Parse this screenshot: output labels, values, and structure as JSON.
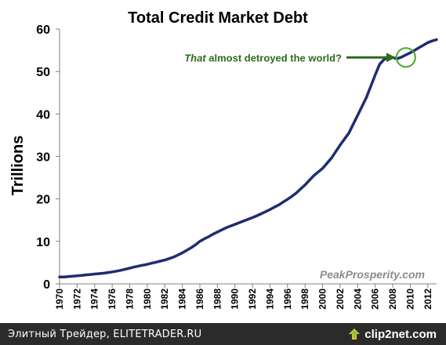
{
  "footer": {
    "text": "Элитный Трейдер, ELITETRADER.RU",
    "brand": "clip2net.com",
    "brand_icon": "upload-arrow-icon"
  },
  "colors": {
    "line": "#1f2d6e",
    "annotation": "#2f6b1f",
    "highlight": "#46a82a",
    "watermark": "#8c8c8c",
    "footer_bg": "#2b2b2b"
  },
  "chart_data": {
    "type": "line",
    "title": "Total Credit Market Debt",
    "ylabel": "Trillions",
    "xlabel": "",
    "xlim": [
      1970,
      2013
    ],
    "ylim": [
      0,
      60
    ],
    "yticks": [
      0,
      10,
      20,
      30,
      40,
      50,
      60
    ],
    "xticks": [
      1970,
      1972,
      1974,
      1976,
      1978,
      1980,
      1982,
      1984,
      1986,
      1988,
      1990,
      1992,
      1994,
      1996,
      1998,
      2000,
      2002,
      2004,
      2006,
      2008,
      2010,
      2012
    ],
    "grid": false,
    "annotation": {
      "emphasis": "That",
      "text": " almost detroyed the world?",
      "x": 2009.5,
      "y": 53.3
    },
    "source": "PeakProsperity.com",
    "series": [
      {
        "x": [
          1970,
          1970.5,
          1971,
          1971.5,
          1972,
          1972.5,
          1973,
          1973.5,
          1974,
          1974.5,
          1975,
          1975.5,
          1976,
          1976.5,
          1977,
          1977.5,
          1978,
          1978.5,
          1979,
          1979.5,
          1980,
          1980.5,
          1981,
          1981.5,
          1982,
          1982.5,
          1983,
          1983.5,
          1984,
          1984.5,
          1985,
          1985.5,
          1986,
          1986.5,
          1987,
          1987.5,
          1988,
          1988.5,
          1989,
          1989.5,
          1990,
          1990.5,
          1991,
          1991.5,
          1992,
          1992.5,
          1993,
          1993.5,
          1994,
          1994.5,
          1995,
          1995.5,
          1996,
          1996.5,
          1997,
          1997.5,
          1998,
          1998.5,
          1999,
          1999.5,
          2000,
          2000.5,
          2001,
          2001.5,
          2002,
          2002.5,
          2003,
          2003.5,
          2004,
          2004.5,
          2005,
          2005.5,
          2006,
          2006.5,
          2007,
          2007.5,
          2008,
          2008.5,
          2009,
          2009.5,
          2010,
          2010.5,
          2011,
          2011.5,
          2012,
          2012.5,
          2013
        ],
        "values": [
          1.6,
          1.6,
          1.7,
          1.8,
          1.9,
          2.0,
          2.1,
          2.2,
          2.3,
          2.4,
          2.5,
          2.65,
          2.8,
          3.0,
          3.2,
          3.45,
          3.7,
          3.95,
          4.2,
          4.4,
          4.6,
          4.85,
          5.1,
          5.35,
          5.6,
          5.95,
          6.3,
          6.8,
          7.3,
          7.9,
          8.5,
          9.2,
          10.0,
          10.6,
          11.1,
          11.7,
          12.2,
          12.7,
          13.2,
          13.6,
          14.0,
          14.4,
          14.8,
          15.2,
          15.6,
          16.05,
          16.5,
          17.0,
          17.5,
          18.05,
          18.6,
          19.25,
          19.9,
          20.6,
          21.4,
          22.35,
          23.3,
          24.4,
          25.5,
          26.35,
          27.2,
          28.4,
          29.6,
          31.15,
          32.7,
          34.1,
          35.5,
          37.6,
          39.7,
          41.8,
          43.9,
          46.55,
          49.2,
          51.7,
          52.8,
          53.6,
          53.3,
          53.0,
          53.4,
          53.9,
          54.4,
          55.0,
          55.6,
          56.2,
          56.8,
          57.2,
          57.5
        ]
      }
    ]
  }
}
